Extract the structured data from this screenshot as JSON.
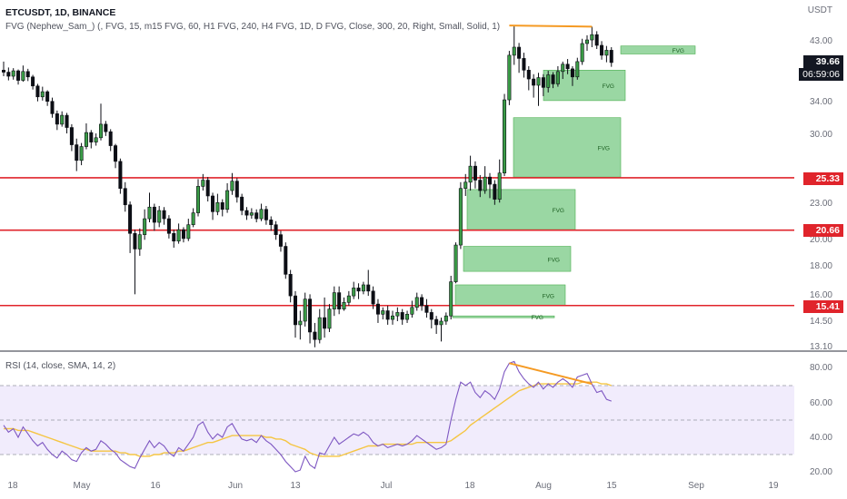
{
  "header": {
    "symbol_line": "ETCUSDT, 1D, BINANCE",
    "indicator_line": "FVG (Nephew_Sam_) (, FVG, 15, m15 FVG, 60, H1 FVG, 240, H4 FVG, 1D, D FVG, Close, 300, 20, Right, Small, Solid, 1)",
    "rsi_line": "RSI (14, close, SMA, 14, 2)"
  },
  "axis": {
    "unit": "USDT",
    "price_ticks": [
      "43.00",
      "34.00",
      "30.00",
      "23.00",
      "20.00",
      "18.00",
      "16.00",
      "14.50",
      "13.10"
    ],
    "rsi_ticks": [
      "80.00",
      "60.00",
      "40.00",
      "20.00"
    ],
    "x_ticks": [
      "18",
      "May",
      "16",
      "Jun",
      "13",
      "Jul",
      "18",
      "Aug",
      "15",
      "Sep",
      "19"
    ]
  },
  "badges": {
    "last_price": "39.66",
    "countdown": "06:59:06",
    "level_1": "25.33",
    "level_2": "20.66",
    "level_3": "15.41"
  },
  "chart_data": {
    "type": "candlestick",
    "symbol": "ETCUSDT",
    "timeframe": "1D",
    "exchange": "BINANCE",
    "y_scale": "log",
    "horizontal_levels": [
      25.33,
      20.66,
      15.41
    ],
    "fvg_zones": [
      {
        "label": "FVG",
        "low": 41.0,
        "high": 42.3
      },
      {
        "label": "FVG",
        "low": 34.2,
        "high": 38.5
      },
      {
        "label": "FVG",
        "low": 25.4,
        "high": 32.0
      },
      {
        "label": "FVG",
        "low": 20.7,
        "high": 24.2
      },
      {
        "label": "FVG",
        "low": 17.6,
        "high": 19.4
      },
      {
        "label": "FVG",
        "low": 15.4,
        "high": 16.7
      },
      {
        "label": "FVG",
        "low": 14.7,
        "high": 14.8
      }
    ],
    "candles": [
      [
        38.5,
        38.2,
        39.8,
        37.6
      ],
      [
        38.2,
        37.6,
        38.9,
        37.0
      ],
      [
        37.6,
        38.4,
        38.8,
        37.1
      ],
      [
        38.4,
        37.0,
        38.6,
        36.4
      ],
      [
        37.0,
        38.3,
        39.2,
        36.8
      ],
      [
        38.3,
        37.5,
        38.7,
        36.9
      ],
      [
        37.5,
        36.2,
        37.8,
        35.7
      ],
      [
        36.2,
        34.7,
        36.5,
        34.1
      ],
      [
        34.7,
        35.4,
        36.1,
        34.2
      ],
      [
        35.4,
        34.1,
        35.6,
        33.5
      ],
      [
        34.1,
        32.5,
        34.6,
        32.0
      ],
      [
        32.5,
        31.2,
        32.9,
        30.5
      ],
      [
        31.2,
        32.3,
        32.8,
        30.9
      ],
      [
        32.3,
        30.8,
        32.6,
        30.1
      ],
      [
        30.8,
        28.8,
        31.2,
        28.1
      ],
      [
        28.8,
        27.1,
        29.5,
        26.0
      ],
      [
        27.1,
        28.6,
        29.0,
        26.6
      ],
      [
        28.6,
        30.2,
        31.3,
        28.3
      ],
      [
        30.2,
        29.1,
        30.5,
        28.4
      ],
      [
        29.1,
        29.6,
        30.1,
        28.7
      ],
      [
        29.6,
        31.2,
        33.8,
        29.3
      ],
      [
        31.2,
        30.3,
        31.6,
        29.8
      ],
      [
        30.3,
        28.7,
        30.6,
        28.1
      ],
      [
        28.7,
        27.0,
        28.9,
        26.3
      ],
      [
        27.0,
        24.3,
        27.3,
        23.8
      ],
      [
        24.3,
        22.8,
        24.9,
        22.2
      ],
      [
        22.8,
        20.4,
        23.1,
        18.9
      ],
      [
        20.4,
        19.2,
        20.7,
        16.1
      ],
      [
        19.2,
        20.3,
        20.8,
        18.7
      ],
      [
        20.3,
        21.6,
        22.4,
        19.9
      ],
      [
        21.6,
        22.6,
        23.9,
        21.3
      ],
      [
        22.6,
        21.3,
        22.9,
        20.6
      ],
      [
        21.3,
        22.3,
        22.7,
        20.9
      ],
      [
        22.3,
        21.6,
        22.6,
        21.1
      ],
      [
        21.6,
        20.4,
        21.9,
        20.0
      ],
      [
        20.4,
        19.8,
        20.7,
        19.3
      ],
      [
        19.8,
        20.7,
        21.2,
        19.6
      ],
      [
        20.7,
        20.0,
        20.9,
        19.7
      ],
      [
        20.0,
        21.1,
        21.6,
        19.8
      ],
      [
        21.1,
        22.1,
        22.5,
        20.9
      ],
      [
        22.1,
        24.5,
        25.2,
        21.8
      ],
      [
        24.5,
        25.1,
        25.7,
        24.1
      ],
      [
        25.1,
        23.6,
        25.4,
        23.1
      ],
      [
        23.6,
        22.2,
        23.9,
        21.5
      ],
      [
        22.2,
        23.0,
        23.8,
        21.9
      ],
      [
        23.0,
        22.4,
        23.3,
        21.8
      ],
      [
        22.4,
        24.1,
        24.8,
        22.1
      ],
      [
        24.1,
        25.0,
        25.8,
        23.7
      ],
      [
        25.0,
        23.5,
        25.3,
        23.0
      ],
      [
        23.5,
        22.3,
        23.8,
        21.9
      ],
      [
        22.3,
        21.9,
        22.6,
        21.5
      ],
      [
        21.9,
        22.1,
        22.5,
        21.6
      ],
      [
        22.1,
        21.6,
        22.4,
        21.3
      ],
      [
        21.6,
        22.4,
        22.9,
        21.4
      ],
      [
        22.4,
        21.5,
        22.7,
        21.1
      ],
      [
        21.5,
        21.1,
        21.8,
        20.6
      ],
      [
        21.1,
        20.3,
        21.4,
        19.9
      ],
      [
        20.3,
        19.4,
        20.6,
        19.0
      ],
      [
        19.4,
        17.4,
        19.7,
        17.1
      ],
      [
        17.4,
        16.0,
        17.7,
        15.6
      ],
      [
        16.0,
        14.3,
        16.3,
        13.6
      ],
      [
        14.3,
        14.5,
        15.1,
        13.5
      ],
      [
        14.5,
        15.8,
        16.2,
        14.2
      ],
      [
        15.8,
        13.9,
        16.1,
        13.3
      ],
      [
        13.9,
        13.5,
        14.4,
        13.1
      ],
      [
        13.5,
        14.7,
        15.2,
        13.3
      ],
      [
        14.7,
        14.1,
        15.9,
        13.6
      ],
      [
        14.1,
        15.2,
        15.5,
        13.9
      ],
      [
        15.2,
        16.2,
        16.6,
        14.8
      ],
      [
        16.2,
        15.2,
        16.6,
        14.9
      ],
      [
        15.2,
        15.6,
        15.9,
        15.1
      ],
      [
        15.6,
        16.0,
        16.3,
        15.4
      ],
      [
        16.0,
        16.5,
        16.9,
        15.8
      ],
      [
        16.5,
        16.3,
        16.8,
        15.8
      ],
      [
        16.3,
        16.7,
        16.9,
        16.1
      ],
      [
        16.7,
        16.3,
        17.7,
        16.0
      ],
      [
        16.3,
        15.5,
        16.6,
        15.2
      ],
      [
        15.5,
        14.9,
        15.8,
        14.4
      ],
      [
        14.9,
        15.1,
        15.3,
        14.6
      ],
      [
        15.1,
        14.6,
        15.4,
        14.3
      ],
      [
        14.6,
        14.8,
        15.1,
        14.3
      ],
      [
        14.8,
        15.0,
        15.3,
        14.5
      ],
      [
        15.0,
        14.6,
        15.2,
        14.3
      ],
      [
        14.6,
        14.9,
        15.1,
        14.4
      ],
      [
        14.9,
        15.3,
        15.7,
        14.7
      ],
      [
        15.3,
        15.9,
        16.2,
        15.1
      ],
      [
        15.9,
        15.4,
        16.1,
        15.1
      ],
      [
        15.4,
        15.0,
        15.8,
        14.7
      ],
      [
        15.0,
        14.6,
        15.2,
        14.1
      ],
      [
        14.6,
        14.3,
        14.8,
        13.8
      ],
      [
        14.3,
        14.5,
        14.7,
        13.4
      ],
      [
        14.5,
        14.8,
        15.0,
        14.3
      ],
      [
        14.8,
        16.9,
        17.3,
        14.6
      ],
      [
        16.9,
        19.5,
        19.7,
        16.8
      ],
      [
        19.5,
        24.3,
        24.9,
        19.2
      ],
      [
        24.3,
        24.9,
        25.7,
        23.6
      ],
      [
        24.9,
        26.5,
        27.6,
        24.1
      ],
      [
        26.5,
        25.1,
        27.0,
        24.3
      ],
      [
        25.1,
        24.1,
        25.6,
        23.5
      ],
      [
        24.1,
        25.4,
        26.5,
        23.8
      ],
      [
        25.4,
        24.7,
        25.8,
        23.4
      ],
      [
        24.7,
        23.3,
        25.1,
        22.8
      ],
      [
        23.3,
        25.8,
        27.2,
        23.0
      ],
      [
        25.8,
        34.3,
        35.1,
        25.5
      ],
      [
        34.3,
        40.8,
        41.5,
        33.6
      ],
      [
        40.8,
        42.1,
        45.8,
        39.3
      ],
      [
        42.1,
        40.3,
        42.8,
        38.1
      ],
      [
        40.3,
        38.5,
        41.2,
        37.4
      ],
      [
        38.5,
        37.2,
        39.1,
        35.6
      ],
      [
        37.2,
        36.3,
        37.9,
        34.6
      ],
      [
        36.3,
        37.4,
        38.1,
        33.5
      ],
      [
        37.4,
        36.0,
        37.9,
        34.8
      ],
      [
        36.0,
        37.8,
        38.4,
        35.3
      ],
      [
        37.8,
        36.5,
        38.2,
        35.9
      ],
      [
        36.5,
        38.3,
        39.1,
        36.1
      ],
      [
        38.3,
        39.4,
        39.8,
        37.2
      ],
      [
        39.4,
        38.7,
        40.2,
        37.9
      ],
      [
        38.7,
        37.5,
        39.1,
        36.2
      ],
      [
        37.5,
        39.8,
        40.4,
        37.1
      ],
      [
        39.8,
        42.7,
        43.5,
        39.3
      ],
      [
        42.7,
        43.3,
        44.1,
        41.5
      ],
      [
        43.3,
        44.2,
        45.6,
        42.1
      ],
      [
        44.2,
        42.4,
        44.8,
        41.8
      ],
      [
        42.4,
        40.8,
        43.1,
        40.1
      ],
      [
        40.8,
        41.6,
        42.3,
        39.7
      ],
      [
        41.6,
        39.66,
        42.1,
        39.0
      ]
    ],
    "rsi": {
      "name": "RSI",
      "period": 14,
      "ylim": [
        20,
        90
      ],
      "bands": [
        70,
        50,
        30
      ],
      "values": [
        47,
        43,
        45,
        40,
        46,
        42,
        38,
        35,
        37,
        33,
        30,
        28,
        32,
        30,
        27,
        26,
        31,
        34,
        32,
        33,
        38,
        36,
        33,
        31,
        27,
        25,
        23,
        22,
        28,
        33,
        38,
        34,
        37,
        35,
        31,
        29,
        34,
        32,
        36,
        40,
        47,
        49,
        43,
        39,
        42,
        40,
        46,
        48,
        43,
        39,
        38,
        39,
        37,
        41,
        38,
        36,
        33,
        30,
        26,
        23,
        20,
        21,
        29,
        24,
        22,
        31,
        30,
        35,
        40,
        36,
        38,
        40,
        42,
        41,
        43,
        41,
        37,
        35,
        36,
        34,
        35,
        36,
        35,
        36,
        38,
        41,
        39,
        37,
        35,
        33,
        34,
        36,
        50,
        62,
        72,
        70,
        72,
        66,
        63,
        67,
        65,
        62,
        68,
        78,
        83,
        84,
        78,
        74,
        71,
        69,
        72,
        68,
        71,
        69,
        72,
        74,
        72,
        69,
        75,
        76,
        77,
        71,
        66,
        67,
        62,
        61
      ],
      "ma": [
        45,
        45,
        45,
        44,
        44,
        44,
        43,
        42,
        41,
        40,
        39,
        38,
        37,
        36,
        35,
        34,
        33,
        33,
        32,
        32,
        32,
        32,
        32,
        32,
        31,
        31,
        30,
        30,
        29,
        29,
        29,
        30,
        30,
        31,
        31,
        31,
        32,
        32,
        33,
        34,
        35,
        36,
        37,
        37,
        38,
        39,
        40,
        41,
        41,
        41,
        41,
        41,
        41,
        41,
        40,
        40,
        39,
        39,
        38,
        36,
        35,
        34,
        33,
        31,
        30,
        29,
        29,
        29,
        29,
        29,
        30,
        31,
        32,
        33,
        34,
        35,
        35,
        35,
        36,
        36,
        36,
        36,
        36,
        36,
        36,
        37,
        37,
        37,
        37,
        37,
        37,
        37,
        38,
        40,
        42,
        44,
        47,
        49,
        51,
        53,
        55,
        57,
        59,
        61,
        63,
        65,
        67,
        68,
        69,
        70,
        71,
        71,
        71,
        71,
        71,
        71,
        71,
        71,
        71,
        72,
        72,
        72,
        72,
        71,
        71,
        70
      ]
    }
  }
}
